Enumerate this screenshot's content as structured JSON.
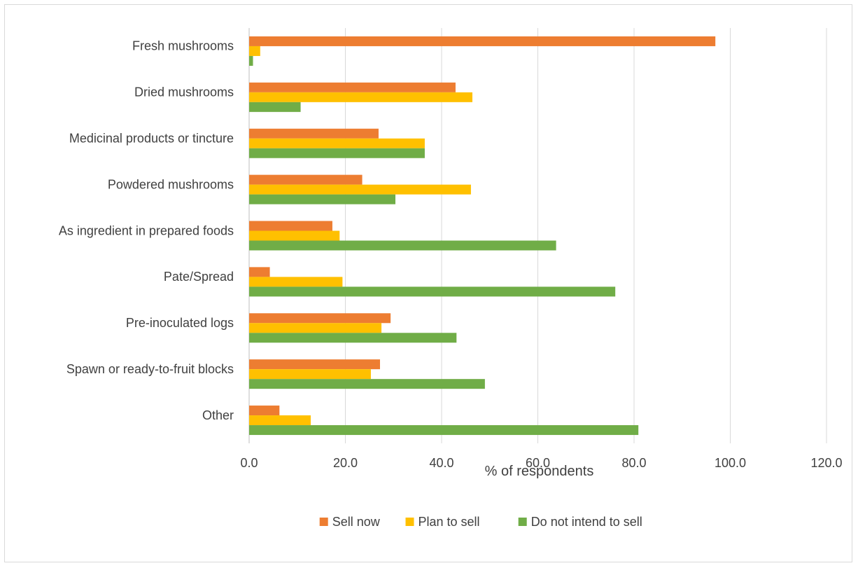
{
  "chart_data": {
    "type": "bar",
    "orientation": "horizontal",
    "categories": [
      "Fresh mushrooms",
      "Dried mushrooms",
      "Medicinal products or tincture",
      "Powdered mushrooms",
      "As ingredient in prepared foods",
      "Pate/Spread",
      "Pre-inoculated logs",
      "Spawn or ready-to-fruit blocks",
      "Other"
    ],
    "series": [
      {
        "name": "Sell now",
        "color": "#ED7D31",
        "values": [
          96.9,
          42.9,
          26.9,
          23.5,
          17.3,
          4.3,
          29.4,
          27.2,
          6.3
        ]
      },
      {
        "name": "Plan to sell",
        "color": "#FFC000",
        "values": [
          2.3,
          46.4,
          36.5,
          46.1,
          18.8,
          19.4,
          27.5,
          25.3,
          12.8
        ]
      },
      {
        "name": "Do not intend to sell",
        "color": "#70AD47",
        "values": [
          0.8,
          10.7,
          36.5,
          30.4,
          63.8,
          76.1,
          43.1,
          49.0,
          80.9
        ]
      }
    ],
    "xlabel": "% of respondents",
    "ylabel": "",
    "xlim": [
      0,
      120
    ],
    "xticks": [
      0,
      20,
      40,
      60,
      80,
      100,
      120
    ],
    "tick_labels": [
      "0.0",
      "20.0",
      "40.0",
      "60.0",
      "80.0",
      "100.0",
      "120.0"
    ],
    "grid": true,
    "legend_position": "bottom"
  }
}
